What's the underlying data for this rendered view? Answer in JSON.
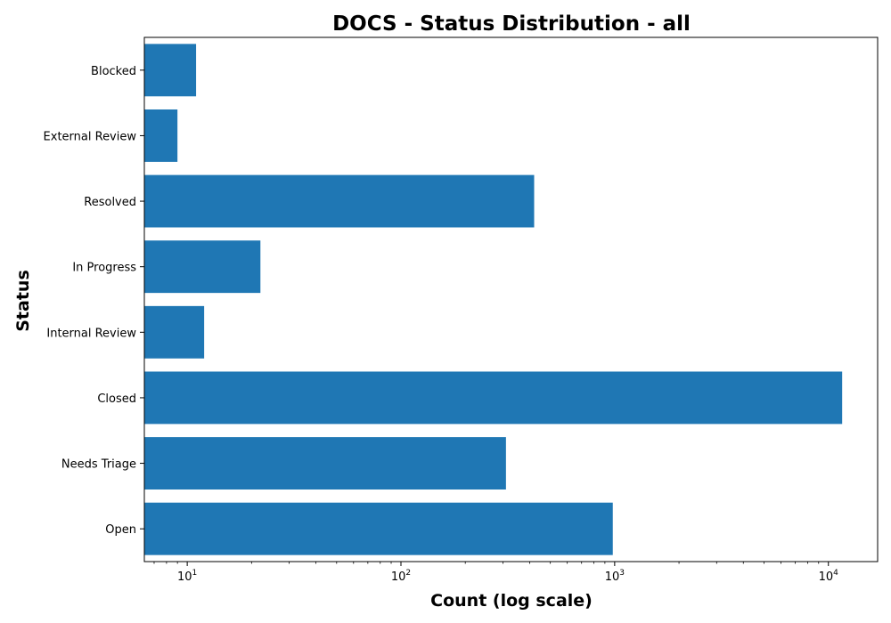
{
  "chart_data": {
    "type": "bar",
    "orientation": "horizontal",
    "title": "DOCS - Status Distribution - all",
    "xlabel": "Count (log scale)",
    "ylabel": "Status",
    "x_scale": "log",
    "xlim": [
      6.3,
      17000
    ],
    "x_ticks": [
      {
        "value": 10,
        "base": "10",
        "exp": "1"
      },
      {
        "value": 100,
        "base": "10",
        "exp": "2"
      },
      {
        "value": 1000,
        "base": "10",
        "exp": "3"
      },
      {
        "value": 10000,
        "base": "10",
        "exp": "4"
      }
    ],
    "categories": [
      "Open",
      "Needs Triage",
      "Closed",
      "Internal Review",
      "In Progress",
      "Resolved",
      "External Review",
      "Blocked"
    ],
    "values": [
      980,
      310,
      11600,
      12,
      22,
      420,
      9,
      11
    ],
    "bar_color": "#1f77b4",
    "grid": false,
    "legend": "none"
  }
}
